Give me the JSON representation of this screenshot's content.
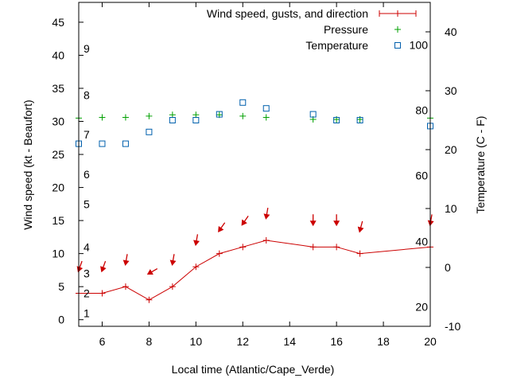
{
  "chart_data": {
    "type": "line",
    "xlabel": "Local time (Atlantic/Cape_Verde)",
    "ylabel": "Wind speed (kt - Beaufort)",
    "y2label": "Temperature (C - F)",
    "xlim": [
      5,
      20
    ],
    "ylim": [
      -1,
      48
    ],
    "y2lim": [
      -10,
      45
    ],
    "grid": false,
    "legend_position": "top-right",
    "x_ticks": [
      "6",
      "8",
      "10",
      "12",
      "14",
      "16",
      "18",
      "20"
    ],
    "x_tick_values": [
      6,
      8,
      10,
      12,
      14,
      16,
      18,
      20
    ],
    "y_ticks": [
      "0",
      "5",
      "10",
      "15",
      "20",
      "25",
      "30",
      "35",
      "40",
      "45"
    ],
    "y_tick_values": [
      0,
      5,
      10,
      15,
      20,
      25,
      30,
      35,
      40,
      45
    ],
    "y2_ticks": [
      "-10",
      "0",
      "10",
      "20",
      "30",
      "40"
    ],
    "y2_tick_values": [
      -10,
      0,
      10,
      20,
      30,
      40
    ],
    "beaufort_labels": [
      {
        "label": "1",
        "kt": 1
      },
      {
        "label": "2",
        "kt": 4
      },
      {
        "label": "3",
        "kt": 7
      },
      {
        "label": "4",
        "kt": 11
      },
      {
        "label": "5",
        "kt": 17.5
      },
      {
        "label": "6",
        "kt": 22
      },
      {
        "label": "7",
        "kt": 28
      },
      {
        "label": "8",
        "kt": 34
      },
      {
        "label": "9",
        "kt": 41
      }
    ],
    "fahrenheit_labels": [
      {
        "label": "20",
        "celsius": -6.7
      },
      {
        "label": "40",
        "celsius": 4.4
      },
      {
        "label": "60",
        "celsius": 15.6
      },
      {
        "label": "80",
        "celsius": 26.7
      },
      {
        "label": "100",
        "celsius": 37.8
      }
    ],
    "series": [
      {
        "name": "Wind speed, gusts, and direction",
        "color": "#cc0000",
        "x": [
          5,
          6,
          7,
          8,
          9,
          10,
          11,
          12,
          13,
          15,
          16,
          17,
          20
        ],
        "values": [
          4,
          4,
          5,
          3,
          5,
          8,
          10,
          11,
          12,
          11,
          11,
          10,
          11
        ],
        "gust_kt": [
          7.5,
          7.5,
          8.5,
          7,
          8.5,
          11.5,
          13.5,
          14.5,
          15.5,
          14.5,
          14.5,
          13.5,
          14.5
        ],
        "arrow_angle_deg": [
          20,
          20,
          10,
          60,
          10,
          10,
          35,
          35,
          10,
          0,
          0,
          15,
          10
        ]
      },
      {
        "name": "Pressure",
        "color": "#00a000",
        "x": [
          5,
          6,
          7,
          8,
          9,
          10,
          11,
          12,
          13,
          15,
          16,
          17,
          20
        ],
        "values": [
          30.5,
          30.6,
          30.6,
          30.8,
          31.0,
          31.0,
          31.0,
          30.8,
          30.6,
          30.3,
          30.3,
          30.3,
          30.5
        ]
      },
      {
        "name": "Temperature",
        "color": "#0060ad",
        "axis": "right",
        "x": [
          5,
          6,
          7,
          8,
          9,
          10,
          11,
          12,
          13,
          15,
          16,
          17,
          20
        ],
        "values": [
          21,
          21,
          21,
          23,
          25,
          25,
          26,
          28,
          27,
          26,
          25,
          25,
          24
        ]
      }
    ]
  }
}
